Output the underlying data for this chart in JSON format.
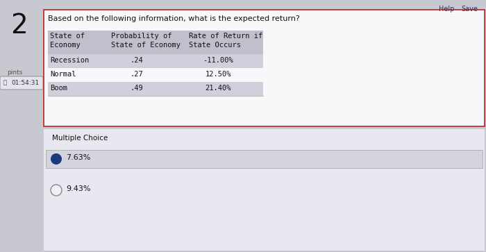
{
  "question_number": "2",
  "question_text": "Based on the following information, what is the expected return?",
  "table_headers_line1": [
    "State of",
    "Probability of",
    "Rate of Return if"
  ],
  "table_headers_line2": [
    "Economy",
    "State of Economy",
    "State Occurs"
  ],
  "table_rows": [
    [
      "Recession",
      ".24",
      "-11.00%"
    ],
    [
      "Normal",
      ".27",
      "12.50%"
    ],
    [
      "Boom",
      ".49",
      "21.40%"
    ]
  ],
  "section_label": "Multiple Choice",
  "choices": [
    "7.63%",
    "9.43%"
  ],
  "selected_choice": 0,
  "sidebar_label": "pints",
  "timer_text": "01:54:31",
  "top_right_links": [
    "Help",
    "Save"
  ],
  "bg_color": "#c8c8d0",
  "main_area_bg": "#d8d8e0",
  "card_bg": "#e8e8f0",
  "white_bg": "#f8f8fa",
  "table_header_bg": "#c0c0cc",
  "table_row1_bg": "#d0d0dc",
  "table_row2_bg": "#e0e0ea",
  "selected_choice_bg": "#d4d4de",
  "border_color": "#bb2222",
  "text_color": "#111111",
  "selected_dot_color": "#1a3a7a",
  "link_color": "#333355"
}
